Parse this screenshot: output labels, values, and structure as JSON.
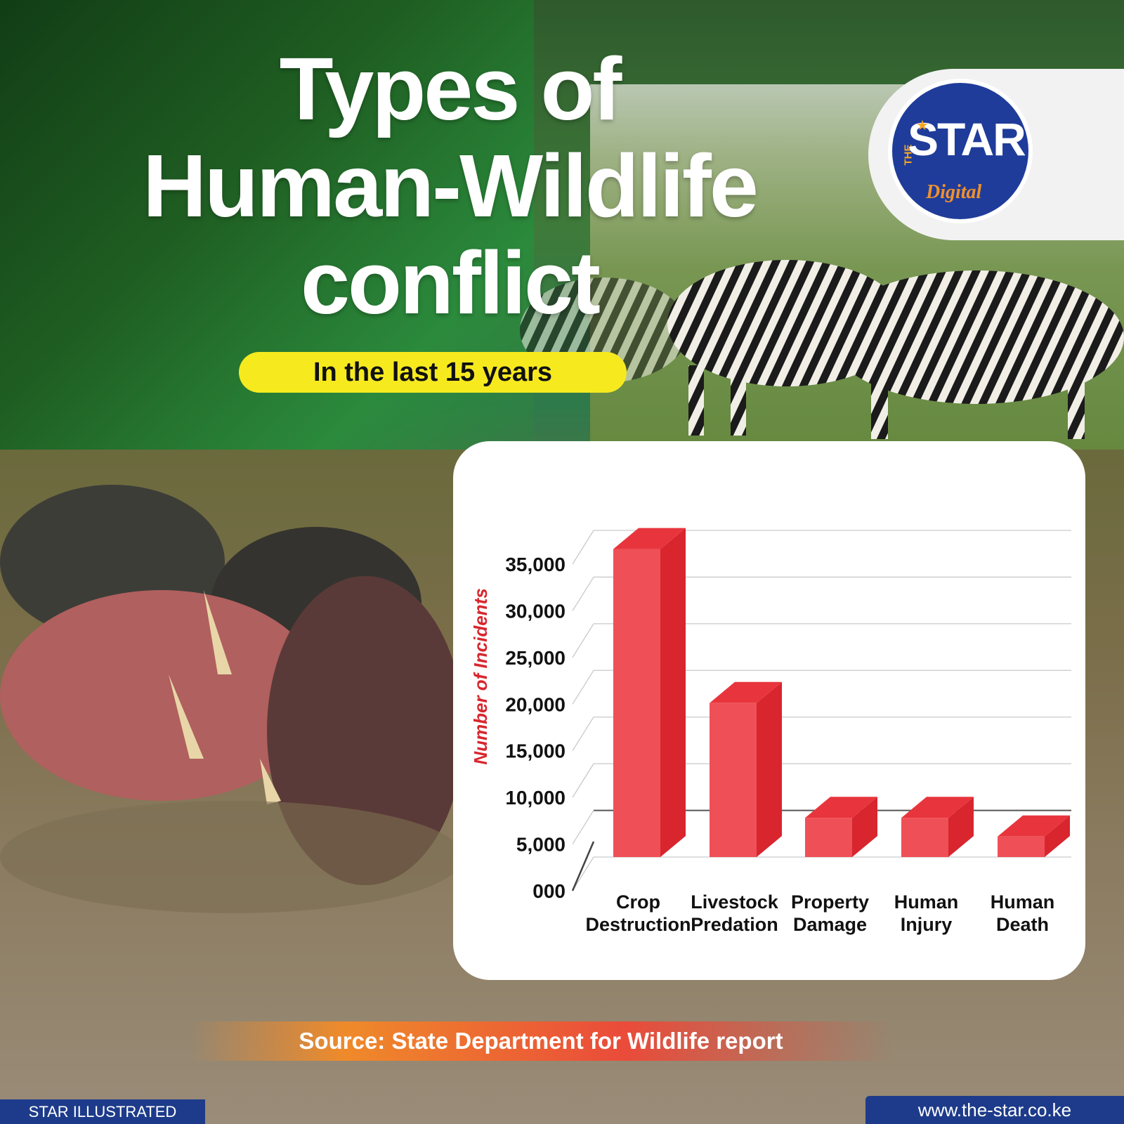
{
  "header": {
    "title_line1": "Types of",
    "title_line2": "Human-Wildlife",
    "title_line3": "conflict",
    "subtitle": "In the last 15 years"
  },
  "logo": {
    "the": "THE",
    "star": "STAR",
    "digital": "Digital"
  },
  "chart_data": {
    "type": "bar",
    "style": "3d",
    "categories": [
      [
        "Crop",
        "Destruction"
      ],
      [
        "Livestock",
        "Predation"
      ],
      [
        "Property",
        "Damage"
      ],
      [
        "Human",
        "Injury"
      ],
      [
        "Human",
        "Death"
      ]
    ],
    "values": [
      33000,
      16500,
      4200,
      4200,
      2200
    ],
    "ylabel": "Number of Incidents",
    "ylim": [
      0,
      35000
    ],
    "yticks": [
      "000",
      "5,000",
      "10,000",
      "15,000",
      "20,000",
      "25,000",
      "30,000",
      "35,000"
    ],
    "grid": true,
    "colors": {
      "bar_front": "#ef5058",
      "bar_top": "#e8353d",
      "bar_side": "#d8252e",
      "ylabel": "#d8262e"
    }
  },
  "source": "Source: State Department for Wildlife report",
  "footer": {
    "left": "STAR ILLUSTRATED",
    "right": "www.the-star.co.ke"
  },
  "colors": {
    "pill": "#f6ea1f",
    "footer": "#1d3b8a",
    "logo": "#1f3c9a"
  }
}
